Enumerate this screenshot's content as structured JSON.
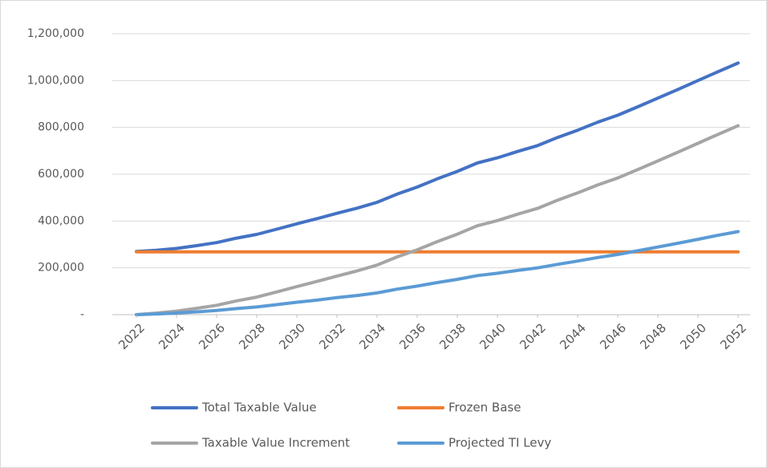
{
  "chart_data": {
    "type": "line",
    "x": [
      2022,
      2023,
      2024,
      2025,
      2026,
      2027,
      2028,
      2029,
      2030,
      2031,
      2032,
      2033,
      2034,
      2035,
      2036,
      2037,
      2038,
      2039,
      2040,
      2041,
      2042,
      2043,
      2044,
      2045,
      2046,
      2047,
      2048,
      2049,
      2050,
      2051,
      2052
    ],
    "xlim": [
      2022,
      2052
    ],
    "xticks": [
      2022,
      2024,
      2026,
      2028,
      2030,
      2032,
      2034,
      2036,
      2038,
      2040,
      2042,
      2044,
      2046,
      2048,
      2050,
      2052
    ],
    "ylim": [
      0,
      1200000
    ],
    "yticks": [
      {
        "value": 0,
        "label": "-"
      },
      {
        "value": 200000,
        "label": "200,000"
      },
      {
        "value": 400000,
        "label": "400,000"
      },
      {
        "value": 600000,
        "label": "600,000"
      },
      {
        "value": 800000,
        "label": "800,000"
      },
      {
        "value": 1000000,
        "label": "1,000,000"
      },
      {
        "value": 1200000,
        "label": "1,200,000"
      }
    ],
    "grid": true,
    "series": [
      {
        "name": "Total Taxable Value",
        "color": "#4472c4",
        "values": [
          270000,
          275000,
          283000,
          295000,
          308000,
          327000,
          343000,
          365000,
          388000,
          410000,
          433000,
          455000,
          480000,
          515000,
          545000,
          580000,
          612000,
          648000,
          670000,
          697000,
          722000,
          757000,
          788000,
          822000,
          852000,
          888000,
          925000,
          962000,
          1000000,
          1038000,
          1075000
        ]
      },
      {
        "name": "Frozen Base",
        "color": "#ed7d31",
        "values": [
          268000,
          268000,
          268000,
          268000,
          268000,
          268000,
          268000,
          268000,
          268000,
          268000,
          268000,
          268000,
          268000,
          268000,
          268000,
          268000,
          268000,
          268000,
          268000,
          268000,
          268000,
          268000,
          268000,
          268000,
          268000,
          268000,
          268000,
          268000,
          268000,
          268000,
          268000
        ]
      },
      {
        "name": "Taxable Value Increment",
        "color": "#a5a5a5",
        "values": [
          0,
          7000,
          15000,
          27000,
          40000,
          59000,
          75000,
          97000,
          120000,
          142000,
          165000,
          187000,
          212000,
          247000,
          277000,
          312000,
          344000,
          380000,
          402000,
          429000,
          454000,
          489000,
          520000,
          554000,
          584000,
          620000,
          657000,
          694000,
          732000,
          770000,
          807000
        ]
      },
      {
        "name": "Projected TI Levy",
        "color": "#5b9bd5",
        "values": [
          0,
          3000,
          7000,
          12000,
          18000,
          26000,
          33000,
          43000,
          53000,
          62000,
          73000,
          82000,
          93000,
          109000,
          122000,
          137000,
          151000,
          167000,
          177000,
          189000,
          200000,
          215000,
          229000,
          244000,
          257000,
          273000,
          289000,
          305000,
          322000,
          339000,
          355000
        ]
      }
    ]
  }
}
